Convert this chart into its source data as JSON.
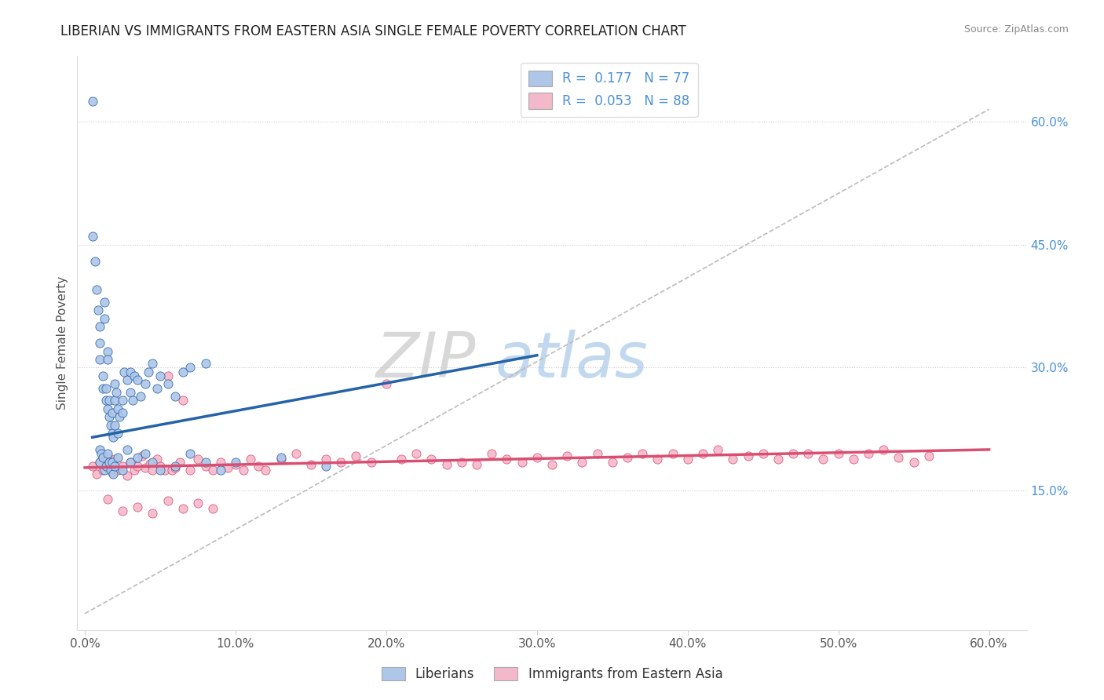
{
  "title": "LIBERIAN VS IMMIGRANTS FROM EASTERN ASIA SINGLE FEMALE POVERTY CORRELATION CHART",
  "source": "Source: ZipAtlas.com",
  "ylabel": "Single Female Poverty",
  "xlim": [
    -0.005,
    0.625
  ],
  "ylim": [
    -0.02,
    0.68
  ],
  "x_ticks": [
    0.0,
    0.1,
    0.2,
    0.3,
    0.4,
    0.5,
    0.6
  ],
  "x_tick_labels": [
    "0.0%",
    "10.0%",
    "20.0%",
    "30.0%",
    "40.0%",
    "50.0%",
    "60.0%"
  ],
  "y_ticks_right": [
    0.15,
    0.3,
    0.45,
    0.6
  ],
  "y_tick_labels_right": [
    "15.0%",
    "30.0%",
    "45.0%",
    "60.0%"
  ],
  "legend1_label": "Liberians",
  "legend2_label": "Immigrants from Eastern Asia",
  "R1": 0.177,
  "N1": 77,
  "R2": 0.053,
  "N2": 88,
  "scatter1_color": "#aec6e8",
  "scatter2_color": "#f4b8cb",
  "line1_color": "#2563a8",
  "line2_color": "#d94f72",
  "background_color": "#ffffff",
  "watermark_zip": "ZIP",
  "watermark_atlas": "atlas",
  "liberian_x": [
    0.005,
    0.005,
    0.007,
    0.008,
    0.009,
    0.01,
    0.01,
    0.01,
    0.012,
    0.012,
    0.013,
    0.013,
    0.014,
    0.014,
    0.015,
    0.015,
    0.015,
    0.016,
    0.016,
    0.017,
    0.018,
    0.018,
    0.019,
    0.02,
    0.02,
    0.02,
    0.021,
    0.022,
    0.022,
    0.023,
    0.025,
    0.025,
    0.026,
    0.028,
    0.03,
    0.03,
    0.032,
    0.033,
    0.035,
    0.037,
    0.04,
    0.042,
    0.045,
    0.048,
    0.05,
    0.055,
    0.06,
    0.065,
    0.07,
    0.08,
    0.01,
    0.01,
    0.011,
    0.012,
    0.013,
    0.014,
    0.015,
    0.016,
    0.017,
    0.018,
    0.019,
    0.02,
    0.022,
    0.025,
    0.028,
    0.03,
    0.035,
    0.04,
    0.045,
    0.05,
    0.06,
    0.07,
    0.08,
    0.09,
    0.1,
    0.13,
    0.16
  ],
  "liberian_y": [
    0.625,
    0.46,
    0.43,
    0.395,
    0.37,
    0.35,
    0.33,
    0.31,
    0.29,
    0.275,
    0.38,
    0.36,
    0.275,
    0.26,
    0.32,
    0.31,
    0.25,
    0.24,
    0.26,
    0.23,
    0.245,
    0.22,
    0.215,
    0.28,
    0.26,
    0.23,
    0.27,
    0.25,
    0.22,
    0.24,
    0.26,
    0.245,
    0.295,
    0.285,
    0.295,
    0.27,
    0.26,
    0.29,
    0.285,
    0.265,
    0.28,
    0.295,
    0.305,
    0.275,
    0.29,
    0.28,
    0.265,
    0.295,
    0.3,
    0.305,
    0.2,
    0.185,
    0.195,
    0.19,
    0.175,
    0.18,
    0.195,
    0.185,
    0.175,
    0.185,
    0.17,
    0.18,
    0.19,
    0.175,
    0.2,
    0.185,
    0.19,
    0.195,
    0.185,
    0.175,
    0.18,
    0.195,
    0.185,
    0.175,
    0.185,
    0.19,
    0.18
  ],
  "eastern_asia_x": [
    0.005,
    0.008,
    0.01,
    0.012,
    0.015,
    0.018,
    0.02,
    0.022,
    0.025,
    0.028,
    0.03,
    0.033,
    0.035,
    0.038,
    0.04,
    0.043,
    0.045,
    0.048,
    0.05,
    0.053,
    0.055,
    0.058,
    0.06,
    0.063,
    0.065,
    0.07,
    0.075,
    0.08,
    0.085,
    0.09,
    0.095,
    0.1,
    0.105,
    0.11,
    0.115,
    0.12,
    0.13,
    0.14,
    0.15,
    0.16,
    0.17,
    0.18,
    0.19,
    0.2,
    0.21,
    0.22,
    0.23,
    0.24,
    0.25,
    0.26,
    0.27,
    0.28,
    0.29,
    0.3,
    0.31,
    0.32,
    0.33,
    0.34,
    0.35,
    0.36,
    0.37,
    0.38,
    0.39,
    0.4,
    0.41,
    0.42,
    0.43,
    0.44,
    0.45,
    0.46,
    0.47,
    0.48,
    0.49,
    0.5,
    0.51,
    0.52,
    0.53,
    0.54,
    0.55,
    0.56,
    0.015,
    0.025,
    0.035,
    0.045,
    0.055,
    0.065,
    0.075,
    0.085
  ],
  "eastern_asia_y": [
    0.18,
    0.17,
    0.185,
    0.175,
    0.19,
    0.172,
    0.188,
    0.175,
    0.18,
    0.168,
    0.185,
    0.175,
    0.18,
    0.192,
    0.178,
    0.183,
    0.175,
    0.188,
    0.18,
    0.175,
    0.29,
    0.175,
    0.178,
    0.185,
    0.26,
    0.175,
    0.188,
    0.18,
    0.175,
    0.185,
    0.178,
    0.182,
    0.175,
    0.188,
    0.18,
    0.175,
    0.188,
    0.195,
    0.182,
    0.188,
    0.185,
    0.192,
    0.185,
    0.28,
    0.188,
    0.195,
    0.188,
    0.182,
    0.185,
    0.182,
    0.195,
    0.188,
    0.185,
    0.19,
    0.182,
    0.192,
    0.185,
    0.195,
    0.185,
    0.19,
    0.195,
    0.188,
    0.195,
    0.188,
    0.195,
    0.2,
    0.188,
    0.192,
    0.195,
    0.188,
    0.195,
    0.195,
    0.188,
    0.195,
    0.188,
    0.195,
    0.2,
    0.19,
    0.185,
    0.192,
    0.14,
    0.125,
    0.13,
    0.122,
    0.138,
    0.128,
    0.135,
    0.128
  ],
  "blue_line_x": [
    0.005,
    0.3
  ],
  "blue_line_y": [
    0.215,
    0.315
  ],
  "pink_line_x": [
    0.0,
    0.6
  ],
  "pink_line_y": [
    0.178,
    0.2
  ],
  "dash_line_x": [
    0.0,
    0.6
  ],
  "dash_line_y": [
    0.0,
    0.615
  ]
}
